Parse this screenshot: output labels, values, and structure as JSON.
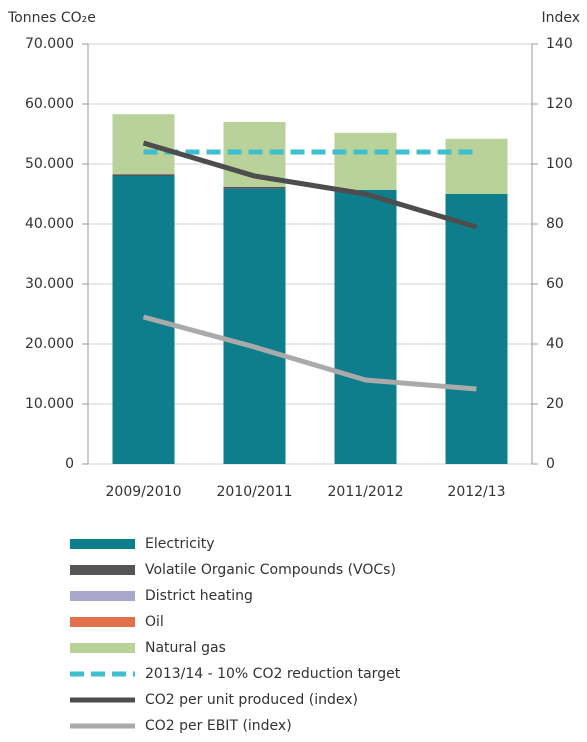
{
  "chart_data": {
    "type": "bar",
    "stacked": true,
    "ylabel": "Tonnes CO₂e",
    "y2label": "Index",
    "categories": [
      "2009/2010",
      "2010/2011",
      "2011/2012",
      "2012/13"
    ],
    "ylim": [
      0,
      70000
    ],
    "yticks": [
      {
        "value": 0,
        "label": "0"
      },
      {
        "value": 10000,
        "label": "10.000"
      },
      {
        "value": 20000,
        "label": "20.000"
      },
      {
        "value": 30000,
        "label": "30.000"
      },
      {
        "value": 40000,
        "label": "40.000"
      },
      {
        "value": 50000,
        "label": "50.000"
      },
      {
        "value": 60000,
        "label": "60.000"
      },
      {
        "value": 70000,
        "label": "70.000"
      }
    ],
    "y2lim": [
      0,
      140
    ],
    "y2ticks": [
      0,
      20,
      40,
      60,
      80,
      100,
      120,
      140
    ],
    "grid": true,
    "series": [
      {
        "name": "Electricity",
        "type": "bar",
        "color": "#0e7d8c",
        "values": [
          48000,
          45900,
          45700,
          45000
        ]
      },
      {
        "name": "Volatile Organic Compounds (VOCs)",
        "type": "bar",
        "color": "#555555",
        "values": [
          300,
          300,
          0,
          0
        ]
      },
      {
        "name": "District heating",
        "type": "bar",
        "color": "#a9a6cb",
        "values": [
          0,
          0,
          0,
          0
        ]
      },
      {
        "name": "Oil",
        "type": "bar",
        "color": "#e2704a",
        "values": [
          0,
          0,
          0,
          0
        ]
      },
      {
        "name": "Natural gas",
        "type": "bar",
        "color": "#b8d29a",
        "values": [
          10000,
          10800,
          9500,
          9200
        ]
      },
      {
        "name": "2013/14 - 10% CO2 reduction target",
        "type": "line",
        "axis": "y2",
        "linestyle": "dashed",
        "color": "#3dbfcf",
        "values": [
          104,
          104,
          104,
          104
        ]
      },
      {
        "name": "CO2 per unit produced (index)",
        "type": "line",
        "axis": "y2",
        "linestyle": "solid",
        "color": "#4d4d4d",
        "values": [
          107,
          96,
          90,
          79
        ]
      },
      {
        "name": "CO2 per EBIT (index)",
        "type": "line",
        "axis": "y2",
        "linestyle": "solid",
        "color": "#aaaaaa",
        "values": [
          49,
          39,
          28,
          25
        ]
      }
    ]
  }
}
